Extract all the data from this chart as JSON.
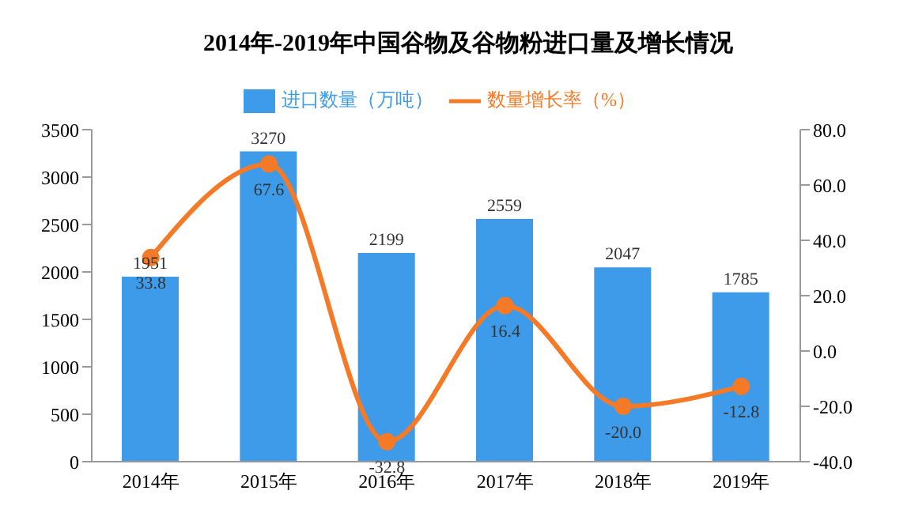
{
  "chart_data": {
    "type": "bar",
    "title": "2014年-2019年中国谷物及谷物粉进口量及增长情况",
    "categories": [
      "2014年",
      "2015年",
      "2016年",
      "2017年",
      "2018年",
      "2019年"
    ],
    "series": [
      {
        "name": "进口数量（万吨）",
        "color": "#3d9be9",
        "values": [
          1951,
          3270,
          2199,
          2559,
          2047,
          1785
        ]
      },
      {
        "name": "数量增长率（%）",
        "type": "line",
        "axis": "y2",
        "color": "#f47a27",
        "marker": "circle",
        "values": [
          33.8,
          67.6,
          -32.8,
          16.4,
          -20.0,
          -12.8
        ],
        "value_labels": [
          "33.8",
          "67.6",
          "-32.8",
          "16.4",
          "-20.0",
          "-12.8"
        ]
      }
    ],
    "ylim": [
      0,
      3500
    ],
    "yticks": [
      0,
      500,
      1000,
      1500,
      2000,
      2500,
      3000,
      3500
    ],
    "y2lim": [
      -40,
      80
    ],
    "y2ticks": [
      {
        "value": -40,
        "label": "-40.0"
      },
      {
        "value": -20,
        "label": "-20.0"
      },
      {
        "value": 0,
        "label": "0.0"
      },
      {
        "value": 20,
        "label": "20.0"
      },
      {
        "value": 40,
        "label": "40.0"
      },
      {
        "value": 60,
        "label": "60.0"
      },
      {
        "value": 80,
        "label": "80.0"
      }
    ],
    "data_labels": true,
    "legend": "top"
  }
}
